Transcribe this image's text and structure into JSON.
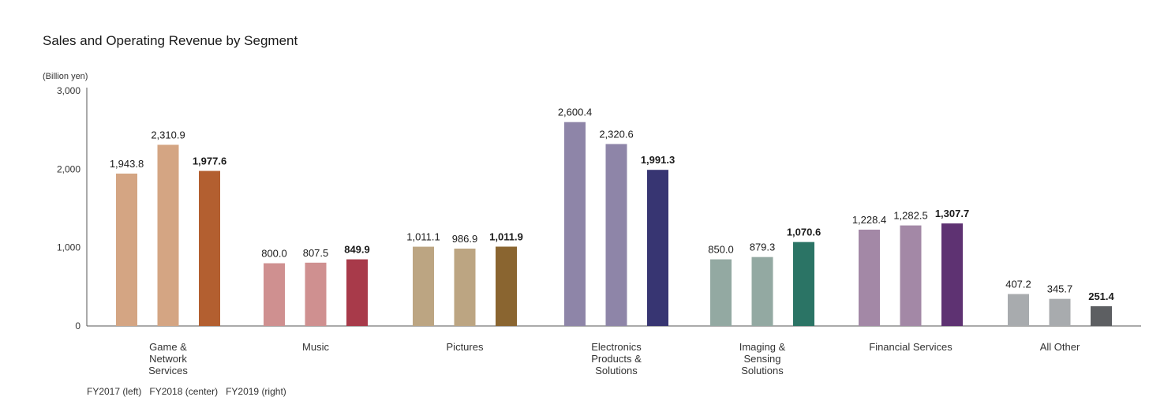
{
  "chart_data": {
    "type": "bar",
    "title": "Sales and Operating Revenue by Segment",
    "unit_label": "(Billion yen)",
    "ylim": [
      0,
      3000
    ],
    "yticks": [
      "0",
      "1,000",
      "2,000",
      "3,000"
    ],
    "ytick_values": [
      0,
      1000,
      2000,
      3000
    ],
    "grid": false,
    "legend_note": "FY2017 (left)   FY2018 (center)   FY2019 (right)",
    "categories": [
      {
        "label": [
          "Game &",
          "Network",
          "Services"
        ],
        "values": [
          1943.8,
          2310.9,
          1977.6
        ],
        "labels": [
          "1,943.8",
          "2,310.9",
          "1,977.6"
        ],
        "colors": [
          "#d4a583",
          "#d4a583",
          "#b35f30"
        ]
      },
      {
        "label": [
          "Music"
        ],
        "values": [
          800.0,
          807.5,
          849.9
        ],
        "labels": [
          "800.0",
          "807.5",
          "849.9"
        ],
        "colors": [
          "#cf9090",
          "#cf9090",
          "#a83a4a"
        ]
      },
      {
        "label": [
          "Pictures"
        ],
        "values": [
          1011.1,
          986.9,
          1011.9
        ],
        "labels": [
          "1,011.1",
          "986.9",
          "1,011.9"
        ],
        "colors": [
          "#bca582",
          "#bca582",
          "#8a6530"
        ]
      },
      {
        "label": [
          "Electronics",
          "Products &",
          "Solutions"
        ],
        "values": [
          2600.4,
          2320.6,
          1991.3
        ],
        "labels": [
          "2,600.4",
          "2,320.6",
          "1,991.3"
        ],
        "colors": [
          "#8e85a8",
          "#8e85a8",
          "#373572"
        ]
      },
      {
        "label": [
          "Imaging &",
          "Sensing",
          "Solutions"
        ],
        "values": [
          850.0,
          879.3,
          1070.6
        ],
        "labels": [
          "850.0",
          "879.3",
          "1,070.6"
        ],
        "colors": [
          "#93a9a2",
          "#93a9a2",
          "#2b7465"
        ]
      },
      {
        "label": [
          "Financial Services"
        ],
        "values": [
          1228.4,
          1282.5,
          1307.7
        ],
        "labels": [
          "1,228.4",
          "1,282.5",
          "1,307.7"
        ],
        "colors": [
          "#a388a6",
          "#a388a6",
          "#5e3272"
        ]
      },
      {
        "label": [
          "All Other"
        ],
        "values": [
          407.2,
          345.7,
          251.4
        ],
        "labels": [
          "407.2",
          "345.7",
          "251.4"
        ],
        "colors": [
          "#a8abae",
          "#a8abae",
          "#5d5f62"
        ]
      }
    ]
  }
}
